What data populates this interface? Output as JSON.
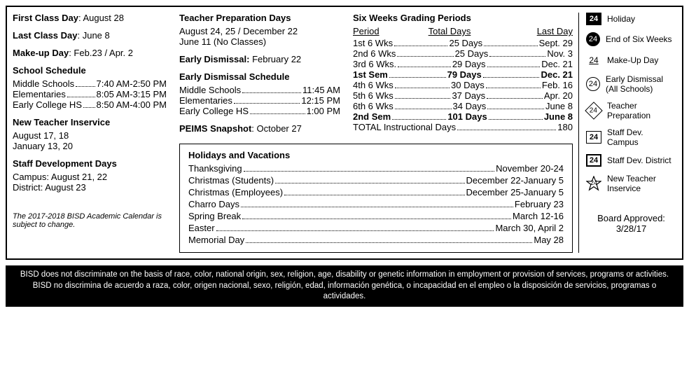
{
  "col1": {
    "first_class_label": "First Class Day",
    "first_class_value": ": August 28",
    "last_class_label": "Last Class Day",
    "last_class_value": ": June 8",
    "makeup_label": "Make-up Day",
    "makeup_value": ":  Feb.23 / Apr. 2",
    "schedule_title": "School Schedule",
    "schedule": [
      {
        "label": "Middle Schools",
        "value": "7:40 AM-2:50 PM"
      },
      {
        "label": "Elementaries",
        "value": "8:05 AM-3:15 PM"
      },
      {
        "label": "Early College HS",
        "value": "8:50 AM-4:00 PM"
      }
    ],
    "new_teacher_title": "New Teacher Inservice",
    "new_teacher_lines": [
      "August 17, 18",
      "January 13, 20"
    ],
    "staff_dev_title": "Staff Development Days",
    "staff_dev_lines": [
      "Campus: August 21, 22",
      "District: August 23"
    ],
    "note": "The 2017-2018 BISD Academic Calendar is subject to change."
  },
  "col2": {
    "teacher_prep_title": "Teacher Preparation Days",
    "teacher_prep_lines": [
      "August 24, 25 / December 22",
      "June 11 (No Classes)"
    ],
    "early_dismissal_label": "Early Dismissal:",
    "early_dismissal_value": " February 22",
    "ed_schedule_title": "Early Dismissal Schedule",
    "ed_schedule": [
      {
        "label": "Middle Schools",
        "value": "11:45 AM"
      },
      {
        "label": "Elementaries",
        "value": "12:15 PM"
      },
      {
        "label": "Early College HS",
        "value": "1:00 PM"
      }
    ],
    "peims_label": "PEIMS Snapshot",
    "peims_value": ": October 27"
  },
  "col3": {
    "grading_title": "Six Weeks Grading Periods",
    "hdr_period": "Period",
    "hdr_total": "Total Days",
    "hdr_last": "Last Day",
    "rows": [
      {
        "label": "1st 6 Wks",
        "days": "25 Days",
        "last": "Sept. 29",
        "bold": false
      },
      {
        "label": "2nd 6 Wks",
        "days": "25 Days",
        "last": "Nov. 3",
        "bold": false
      },
      {
        "label": "3rd 6 Wks.",
        "days": "29 Days",
        "last": "Dec. 21",
        "bold": false
      },
      {
        "label": "1st Sem",
        "days": "79 Days",
        "last": "Dec. 21",
        "bold": true
      },
      {
        "label": "4th 6 Wks",
        "days": "30 Days",
        "last": "Feb. 16",
        "bold": false
      },
      {
        "label": "5th 6 Wks",
        "days": "37 Days",
        "last": "Apr. 20",
        "bold": false
      },
      {
        "label": "6th 6 Wks",
        "days": "34 Days",
        "last": "June 8",
        "bold": false
      },
      {
        "label": "2nd Sem",
        "days": "101 Days",
        "last": "June 8",
        "bold": true
      }
    ],
    "total_line_label": "TOTAL Instructional Days",
    "total_line_value": "180"
  },
  "holidays": {
    "title": "Holidays and Vacations",
    "rows": [
      {
        "label": "Thanksgiving",
        "value": "November 20-24"
      },
      {
        "label": "Christmas (Students)",
        "value": "December 22-January 5"
      },
      {
        "label": "Christmas (Employees)",
        "value": "December 25-January 5"
      },
      {
        "label": "Charro Days",
        "value": "February 23"
      },
      {
        "label": "Spring Break",
        "value": "March 12-16"
      },
      {
        "label": "Easter",
        "value": "March 30, April 2"
      },
      {
        "label": "Memorial Day",
        "value": "May 28"
      }
    ]
  },
  "legend": {
    "num": "24",
    "items": [
      "Holiday",
      "End of Six Weeks",
      "Make-Up Day",
      "Early Dismissal (All Schools)",
      "Teacher Preparation",
      "Staff Dev. Campus",
      "Staff Dev. District",
      "New Teacher Inservice"
    ],
    "approved_label": "Board Approved:",
    "approved_date": "3/28/17"
  },
  "footer": {
    "en": "BISD does not discriminate on the basis of race, color, national origin, sex, religion, age, disability or genetic information in employment or provision of services, programs or activities.",
    "es": "BISD no discrimina de acuerdo a raza, color, origen nacional, sexo, religión, edad, información genética, o incapacidad en el empleo o la disposición de servicios, programas o actividades."
  }
}
